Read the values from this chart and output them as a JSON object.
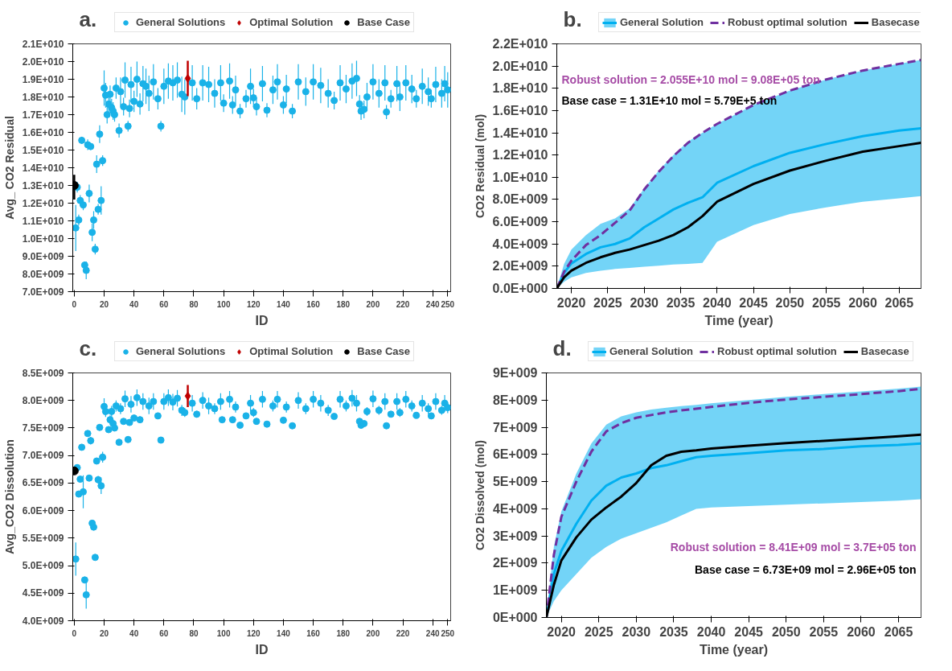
{
  "chart_data": [
    {
      "type": "scatter",
      "title": "a.",
      "xlabel": "ID",
      "ylabel": "Avg_ CO2 Residual",
      "legend": "top",
      "marker": "circle",
      "xlim": [
        -1,
        252
      ],
      "xticks": [
        0,
        20,
        40,
        60,
        80,
        100,
        120,
        140,
        160,
        180,
        200,
        220,
        240,
        250
      ],
      "ylim": [
        7000000000.0,
        21000000000.0
      ],
      "yticks": [
        {
          "value": 7000000000.0,
          "label": "7.0E+009"
        },
        {
          "value": 8000000000.0,
          "label": "8.0E+009"
        },
        {
          "value": 9000000000.0,
          "label": "9.0E+009"
        },
        {
          "value": 10000000000.0,
          "label": "1.0E+010"
        },
        {
          "value": 11000000000.0,
          "label": "1.1E+010"
        },
        {
          "value": 12000000000.0,
          "label": "1.2E+010"
        },
        {
          "value": 13000000000.0,
          "label": "1.3E+010"
        },
        {
          "value": 14000000000.0,
          "label": "1.4E+010"
        },
        {
          "value": 15000000000.0,
          "label": "1.5E+010"
        },
        {
          "value": 16000000000.0,
          "label": "1.6E+010"
        },
        {
          "value": 17000000000.0,
          "label": "1.7E+010"
        },
        {
          "value": 18000000000.0,
          "label": "1.8E+010"
        },
        {
          "value": 19000000000.0,
          "label": "1.9E+010"
        },
        {
          "value": 20000000000.0,
          "label": "2.0E+010"
        },
        {
          "value": 21000000000.0,
          "label": "2.1E+010"
        }
      ],
      "series": [
        {
          "name": "General Solutions",
          "color": "#1ab2e8",
          "x": [
            1,
            2,
            3,
            4,
            5,
            6,
            7,
            8,
            9,
            10,
            11,
            12,
            13,
            14,
            15,
            16,
            17,
            18,
            19,
            20,
            21,
            22,
            23,
            24,
            25,
            26,
            27,
            28,
            30,
            31,
            33,
            34,
            36,
            37,
            38,
            40,
            42,
            44,
            46,
            48,
            50,
            53,
            56,
            58,
            60,
            63,
            66,
            69,
            72,
            74,
            79,
            82,
            86,
            90,
            94,
            98,
            100,
            104,
            106,
            108,
            111,
            115,
            118,
            120,
            122,
            126,
            129,
            133,
            136,
            140,
            142,
            146,
            150,
            155,
            160,
            165,
            170,
            174,
            178,
            182,
            186,
            189,
            191,
            192,
            194,
            196,
            200,
            204,
            208,
            209,
            212,
            216,
            218,
            222,
            226,
            229,
            233,
            237,
            239,
            242,
            246,
            248,
            250
          ],
          "values": [
            10600000000.0,
            12900000000.0,
            11050000000.0,
            12150000000.0,
            15550000000.0,
            11900000000.0,
            8500000000.0,
            8200000000.0,
            15300000000.0,
            12550000000.0,
            15200000000.0,
            10350000000.0,
            11050000000.0,
            9400000000.0,
            14200000000.0,
            11650000000.0,
            15900000000.0,
            12150000000.0,
            14400000000.0,
            18500000000.0,
            18100000000.0,
            17000000000.0,
            17600000000.0,
            18150000000.0,
            17400000000.0,
            17200000000.0,
            17000000000.0,
            18500000000.0,
            16100000000.0,
            18300000000.0,
            17450000000.0,
            18950000000.0,
            16350000000.0,
            17350000000.0,
            18700000000.0,
            17750000000.0,
            19000000000.0,
            17600000000.0,
            18750000000.0,
            18600000000.0,
            18200000000.0,
            18850000000.0,
            17900000000.0,
            16350000000.0,
            18600000000.0,
            18900000000.0,
            18800000000.0,
            18950000000.0,
            18150000000.0,
            18000000000.0,
            18800000000.0,
            17900000000.0,
            18800000000.0,
            18700000000.0,
            18200000000.0,
            18800000000.0,
            17650000000.0,
            18900000000.0,
            17550000000.0,
            18400000000.0,
            17200000000.0,
            17900000000.0,
            18600000000.0,
            17950000000.0,
            17450000000.0,
            18750000000.0,
            17250000000.0,
            18400000000.0,
            18850000000.0,
            17550000000.0,
            18450000000.0,
            17200000000.0,
            18850000000.0,
            18300000000.0,
            18850000000.0,
            18650000000.0,
            18200000000.0,
            17800000000.0,
            18800000000.0,
            18450000000.0,
            18900000000.0,
            19050000000.0,
            17600000000.0,
            17200000000.0,
            17300000000.0,
            18000000000.0,
            18850000000.0,
            18200000000.0,
            18800000000.0,
            17150000000.0,
            17900000000.0,
            18750000000.0,
            18000000000.0,
            18800000000.0,
            18450000000.0,
            17900000000.0,
            18600000000.0,
            18300000000.0,
            17900000000.0,
            18700000000.0,
            18200000000.0,
            18750000000.0,
            18400000000.0
          ],
          "errors": [
            1300000000.0,
            300000000.0,
            300000000.0,
            300000000.0,
            200000000.0,
            300000000.0,
            200000000.0,
            500000000.0,
            300000000.0,
            500000000.0,
            200000000.0,
            500000000.0,
            500000000.0,
            300000000.0,
            500000000.0,
            300000000.0,
            500000000.0,
            800000000.0,
            300000000.0,
            1000000000.0,
            700000000.0,
            500000000.0,
            500000000.0,
            500000000.0,
            500000000.0,
            500000000.0,
            400000000.0,
            600000000.0,
            400000000.0,
            800000000.0,
            500000000.0,
            1000000000.0,
            300000000.0,
            500000000.0,
            1000000000.0,
            600000000.0,
            1000000000.0,
            600000000.0,
            1000000000.0,
            1000000000.0,
            1000000000.0,
            1000000000.0,
            600000000.0,
            300000000.0,
            1000000000.0,
            1000000000.0,
            1000000000.0,
            1000000000.0,
            1000000000.0,
            1000000000.0,
            1000000000.0,
            600000000.0,
            1000000000.0,
            1000000000.0,
            800000000.0,
            1000000000.0,
            500000000.0,
            1000000000.0,
            500000000.0,
            800000000.0,
            400000000.0,
            500000000.0,
            1000000000.0,
            500000000.0,
            500000000.0,
            1000000000.0,
            400000000.0,
            800000000.0,
            1000000000.0,
            500000000.0,
            800000000.0,
            400000000.0,
            1000000000.0,
            800000000.0,
            1000000000.0,
            1000000000.0,
            800000000.0,
            500000000.0,
            1000000000.0,
            800000000.0,
            1000000000.0,
            1000000000.0,
            500000000.0,
            500000000.0,
            500000000.0,
            800000000.0,
            1000000000.0,
            800000000.0,
            1000000000.0,
            400000000.0,
            500000000.0,
            1000000000.0,
            800000000.0,
            1000000000.0,
            800000000.0,
            500000000.0,
            1000000000.0,
            800000000.0,
            500000000.0,
            1000000000.0,
            800000000.0,
            1000000000.0,
            1000000000.0
          ]
        },
        {
          "name": "Optimal Solution",
          "color": "#c00000",
          "marker": "diamond",
          "x": [
            76
          ],
          "values": [
            19050000000.0
          ],
          "errors": [
            1000000000.0
          ]
        },
        {
          "name": "Base Case",
          "color": "#000000",
          "x": [
            0
          ],
          "values": [
            13000000000.0
          ],
          "errors": [
            [
              12200000000.0,
              13600000000.0
            ]
          ]
        }
      ]
    },
    {
      "type": "line",
      "title": "b.",
      "xlabel": "Time (year)",
      "ylabel": "CO2 Residual (mol)",
      "legend": "top",
      "xlim": [
        2018,
        2068
      ],
      "xticks": [
        2020,
        2025,
        2030,
        2035,
        2040,
        2045,
        2050,
        2055,
        2060,
        2065
      ],
      "ylim": [
        0,
        22000000000.0
      ],
      "yticks": [
        {
          "value": 0,
          "label": "0.0E+000"
        },
        {
          "value": 2000000000.0,
          "label": "2.0E+009"
        },
        {
          "value": 4000000000.0,
          "label": "4.0E+009"
        },
        {
          "value": 6000000000.0,
          "label": "6.0E+009"
        },
        {
          "value": 8000000000.0,
          "label": "8.0E+009"
        },
        {
          "value": 10000000000.0,
          "label": "1.0E+010"
        },
        {
          "value": 12000000000.0,
          "label": "1.2E+010"
        },
        {
          "value": 14000000000.0,
          "label": "1.4E+010"
        },
        {
          "value": 16000000000.0,
          "label": "1.6E+010"
        },
        {
          "value": 18000000000.0,
          "label": "1.8E+010"
        },
        {
          "value": 20000000000.0,
          "label": "2.0E+010"
        },
        {
          "value": 22000000000.0,
          "label": "2.2E+010"
        }
      ],
      "x": [
        2018,
        2019,
        2020,
        2022,
        2024,
        2026,
        2028,
        2030,
        2032,
        2034,
        2036,
        2038,
        2040,
        2045,
        2050,
        2055,
        2060,
        2065,
        2068
      ],
      "annotations": [
        "Robust solution = 2.055E+10 mol = 9.08E+05 ton",
        "Base case = 1.31E+10 mol = 5.79E+5 ton"
      ],
      "series": [
        {
          "name": "General Solution",
          "color": "#00b0f0",
          "values": [
            0,
            1400000000.0,
            2250000000.0,
            3100000000.0,
            3700000000.0,
            4000000000.0,
            4500000000.0,
            5500000000.0,
            6300000000.0,
            7100000000.0,
            7700000000.0,
            8200000000.0,
            9500000000.0,
            11000000000.0,
            12200000000.0,
            13000000000.0,
            13700000000.0,
            14200000000.0,
            14400000000.0
          ],
          "lower": [
            0,
            600000000.0,
            1000000000.0,
            1400000000.0,
            1600000000.0,
            1750000000.0,
            1850000000.0,
            1950000000.0,
            2050000000.0,
            2150000000.0,
            2200000000.0,
            2300000000.0,
            4200000000.0,
            5700000000.0,
            6700000000.0,
            7300000000.0,
            7800000000.0,
            8100000000.0,
            8300000000.0
          ],
          "upper": [
            0,
            2200000000.0,
            3500000000.0,
            4800000000.0,
            5800000000.0,
            6300000000.0,
            7200000000.0,
            9000000000.0,
            10600000000.0,
            12000000000.0,
            13200000000.0,
            14000000000.0,
            14800000000.0,
            16500000000.0,
            17800000000.0,
            18800000000.0,
            19600000000.0,
            20200000000.0,
            20550000000.0
          ]
        },
        {
          "name": "Robust optimal solution",
          "color": "#7030a0",
          "line_style": "dashed",
          "values": [
            0,
            1500000000.0,
            2500000000.0,
            3900000000.0,
            4800000000.0,
            5900000000.0,
            7000000000.0,
            8900000000.0,
            10500000000.0,
            11900000000.0,
            13100000000.0,
            14000000000.0,
            14800000000.0,
            16500000000.0,
            17800000000.0,
            18800000000.0,
            19600000000.0,
            20200000000.0,
            20550000000.0
          ]
        },
        {
          "name": "Basecase",
          "color": "#000000",
          "values": [
            0,
            1000000000.0,
            1600000000.0,
            2300000000.0,
            2800000000.0,
            3200000000.0,
            3500000000.0,
            3900000000.0,
            4300000000.0,
            4800000000.0,
            5500000000.0,
            6500000000.0,
            7800000000.0,
            9400000000.0,
            10600000000.0,
            11500000000.0,
            12300000000.0,
            12800000000.0,
            13100000000.0
          ]
        }
      ]
    },
    {
      "type": "scatter",
      "title": "c.",
      "xlabel": "ID",
      "ylabel": "Avg_CO2 Dissolution",
      "legend": "top",
      "marker": "circle",
      "xlim": [
        -1,
        252
      ],
      "xticks": [
        0,
        20,
        40,
        60,
        80,
        100,
        120,
        140,
        160,
        180,
        200,
        220,
        240,
        250
      ],
      "ylim": [
        4000000000.0,
        8500000000.0
      ],
      "yticks": [
        {
          "value": 4000000000.0,
          "label": "4.0E+009"
        },
        {
          "value": 4500000000.0,
          "label": "4.5E+009"
        },
        {
          "value": 5000000000.0,
          "label": "5.0E+009"
        },
        {
          "value": 5500000000.0,
          "label": "5.5E+009"
        },
        {
          "value": 6000000000.0,
          "label": "6.0E+009"
        },
        {
          "value": 6500000000.0,
          "label": "6.5E+009"
        },
        {
          "value": 7000000000.0,
          "label": "7.0E+009"
        },
        {
          "value": 7500000000.0,
          "label": "7.5E+009"
        },
        {
          "value": 8000000000.0,
          "label": "8.0E+009"
        },
        {
          "value": 8500000000.0,
          "label": "8.5E+009"
        }
      ],
      "series": [
        {
          "name": "General Solutions",
          "color": "#1ab2e8",
          "x": [
            1,
            2,
            3,
            4,
            5,
            6,
            7,
            8,
            9,
            10,
            11,
            12,
            13,
            14,
            15,
            16,
            17,
            18,
            19,
            20,
            21,
            23,
            24,
            25,
            26,
            27,
            28,
            30,
            31,
            33,
            34,
            36,
            37,
            38,
            40,
            42,
            44,
            46,
            50,
            53,
            56,
            58,
            60,
            63,
            66,
            69,
            72,
            74,
            79,
            82,
            86,
            90,
            94,
            98,
            99,
            104,
            106,
            108,
            111,
            115,
            118,
            120,
            122,
            126,
            129,
            133,
            136,
            140,
            142,
            146,
            150,
            155,
            160,
            165,
            170,
            174,
            178,
            182,
            186,
            189,
            191,
            192,
            194,
            196,
            200,
            204,
            208,
            209,
            212,
            216,
            218,
            222,
            226,
            229,
            233,
            237,
            239,
            242,
            246,
            248,
            250
          ],
          "values": [
            5120000000.0,
            6780000000.0,
            6300000000.0,
            6570000000.0,
            7150000000.0,
            6340000000.0,
            4740000000.0,
            4470000000.0,
            7400000000.0,
            6590000000.0,
            7270000000.0,
            5770000000.0,
            5700000000.0,
            5150000000.0,
            6900000000.0,
            6560000000.0,
            7510000000.0,
            6450000000.0,
            6970000000.0,
            7890000000.0,
            7800000000.0,
            7470000000.0,
            7650000000.0,
            7800000000.0,
            7580000000.0,
            7500000000.0,
            7900000000.0,
            7240000000.0,
            7850000000.0,
            7620000000.0,
            8030000000.0,
            7290000000.0,
            7600000000.0,
            7930000000.0,
            7680000000.0,
            8050000000.0,
            7650000000.0,
            7980000000.0,
            7900000000.0,
            7980000000.0,
            7720000000.0,
            7280000000.0,
            7980000000.0,
            8050000000.0,
            7970000000.0,
            8040000000.0,
            7820000000.0,
            7780000000.0,
            7950000000.0,
            7750000000.0,
            8000000000.0,
            7900000000.0,
            7850000000.0,
            7980000000.0,
            7650000000.0,
            8020000000.0,
            7650000000.0,
            7880000000.0,
            7550000000.0,
            7720000000.0,
            7950000000.0,
            7780000000.0,
            7620000000.0,
            8020000000.0,
            7570000000.0,
            7900000000.0,
            8020000000.0,
            7640000000.0,
            7880000000.0,
            7540000000.0,
            8000000000.0,
            7850000000.0,
            8020000000.0,
            7950000000.0,
            7820000000.0,
            7710000000.0,
            8020000000.0,
            7900000000.0,
            8040000000.0,
            7950000000.0,
            7620000000.0,
            7550000000.0,
            7580000000.0,
            7800000000.0,
            8030000000.0,
            7820000000.0,
            7980000000.0,
            7540000000.0,
            7750000000.0,
            7980000000.0,
            7780000000.0,
            8020000000.0,
            7900000000.0,
            7730000000.0,
            7950000000.0,
            7850000000.0,
            7720000000.0,
            7980000000.0,
            7820000000.0,
            7950000000.0,
            7870000000.0
          ],
          "errors": [
            300000000.0,
            50000000.0,
            50000000.0,
            50000000.0,
            30000000.0,
            300000000.0,
            50000000.0,
            250000000.0,
            50000000.0,
            30000000.0,
            70000000.0,
            30000000.0,
            30000000.0,
            30000000.0,
            50000000.0,
            70000000.0,
            30000000.0,
            150000000.0,
            100000000.0,
            150000000.0,
            100000000.0,
            50000000.0,
            80000000.0,
            100000000.0,
            50000000.0,
            50000000.0,
            100000000.0,
            40000000.0,
            100000000.0,
            50000000.0,
            150000000.0,
            40000000.0,
            50000000.0,
            150000000.0,
            50000000.0,
            150000000.0,
            60000000.0,
            150000000.0,
            150000000.0,
            150000000.0,
            50000000.0,
            40000000.0,
            150000000.0,
            150000000.0,
            150000000.0,
            150000000.0,
            100000000.0,
            80000000.0,
            150000000.0,
            60000000.0,
            150000000.0,
            150000000.0,
            100000000.0,
            150000000.0,
            50000000.0,
            150000000.0,
            50000000.0,
            100000000.0,
            40000000.0,
            50000000.0,
            150000000.0,
            80000000.0,
            50000000.0,
            150000000.0,
            40000000.0,
            100000000.0,
            150000000.0,
            50000000.0,
            100000000.0,
            40000000.0,
            150000000.0,
            100000000.0,
            150000000.0,
            150000000.0,
            100000000.0,
            50000000.0,
            150000000.0,
            100000000.0,
            150000000.0,
            150000000.0,
            50000000.0,
            50000000.0,
            50000000.0,
            80000000.0,
            150000000.0,
            80000000.0,
            150000000.0,
            40000000.0,
            50000000.0,
            150000000.0,
            80000000.0,
            150000000.0,
            100000000.0,
            50000000.0,
            150000000.0,
            100000000.0,
            50000000.0,
            150000000.0,
            80000000.0,
            150000000.0,
            100000000.0
          ]
        },
        {
          "name": "Optimal Solution",
          "color": "#c00000",
          "marker": "diamond",
          "x": [
            76
          ],
          "values": [
            8080000000.0
          ],
          "errors": [
            200000000.0
          ]
        },
        {
          "name": "Base Case",
          "color": "#000000",
          "x": [
            0
          ],
          "values": [
            6720000000.0
          ]
        }
      ]
    },
    {
      "type": "line",
      "title": "d.",
      "xlabel": "Time (year)",
      "ylabel": "CO2 Dissolved (mol)",
      "legend": "top",
      "xlim": [
        2018,
        2068
      ],
      "xticks": [
        2020,
        2025,
        2030,
        2035,
        2040,
        2045,
        2050,
        2055,
        2060,
        2065
      ],
      "ylim": [
        0,
        9000000000.0
      ],
      "yticks": [
        {
          "value": 0,
          "label": "0E+000"
        },
        {
          "value": 1000000000.0,
          "label": "1E+009"
        },
        {
          "value": 2000000000.0,
          "label": "2E+009"
        },
        {
          "value": 3000000000.0,
          "label": "3E+009"
        },
        {
          "value": 4000000000.0,
          "label": "4E+009"
        },
        {
          "value": 5000000000.0,
          "label": "5E+009"
        },
        {
          "value": 6000000000.0,
          "label": "6E+009"
        },
        {
          "value": 7000000000.0,
          "label": "7E+009"
        },
        {
          "value": 8000000000.0,
          "label": "8E+009"
        },
        {
          "value": 9000000000.0,
          "label": "9E+009"
        }
      ],
      "x": [
        2018,
        2019,
        2020,
        2022,
        2024,
        2026,
        2028,
        2030,
        2032,
        2034,
        2036,
        2038,
        2040,
        2045,
        2050,
        2055,
        2060,
        2065,
        2068
      ],
      "annotations": [
        "Robust solution = 8.41E+09 mol = 3.7E+05 ton",
        "Base case = 6.73E+09 mol = 2.96E+05 ton"
      ],
      "series": [
        {
          "name": "General Solution",
          "color": "#00b0f0",
          "values": [
            0,
            1600000000.0,
            2450000000.0,
            3450000000.0,
            4300000000.0,
            4850000000.0,
            5150000000.0,
            5300000000.0,
            5500000000.0,
            5600000000.0,
            5750000000.0,
            5900000000.0,
            5950000000.0,
            6050000000.0,
            6150000000.0,
            6200000000.0,
            6300000000.0,
            6350000000.0,
            6400000000.0
          ],
          "lower": [
            0,
            600000000.0,
            1000000000.0,
            1600000000.0,
            2200000000.0,
            2600000000.0,
            2900000000.0,
            3100000000.0,
            3300000000.0,
            3500000000.0,
            3750000000.0,
            4000000000.0,
            4050000000.0,
            4100000000.0,
            4150000000.0,
            4200000000.0,
            4250000000.0,
            4300000000.0,
            4350000000.0
          ],
          "upper": [
            0,
            2600000000.0,
            3900000000.0,
            5300000000.0,
            6400000000.0,
            7100000000.0,
            7400000000.0,
            7550000000.0,
            7650000000.0,
            7720000000.0,
            7780000000.0,
            7820000000.0,
            7880000000.0,
            8000000000.0,
            8120000000.0,
            8220000000.0,
            8320000000.0,
            8420000000.0,
            8500000000.0
          ]
        },
        {
          "name": "Robust optimal solution",
          "color": "#7030a0",
          "line_style": "dashed",
          "values": [
            0,
            2300000000.0,
            3700000000.0,
            5000000000.0,
            6100000000.0,
            6850000000.0,
            7150000000.0,
            7350000000.0,
            7450000000.0,
            7550000000.0,
            7620000000.0,
            7680000000.0,
            7750000000.0,
            7900000000.0,
            8020000000.0,
            8120000000.0,
            8220000000.0,
            8330000000.0,
            8410000000.0
          ]
        },
        {
          "name": "Basecase",
          "color": "#000000",
          "values": [
            0,
            1200000000.0,
            2100000000.0,
            2950000000.0,
            3600000000.0,
            4050000000.0,
            4450000000.0,
            4950000000.0,
            5600000000.0,
            5950000000.0,
            6100000000.0,
            6150000000.0,
            6220000000.0,
            6320000000.0,
            6420000000.0,
            6500000000.0,
            6580000000.0,
            6670000000.0,
            6730000000.0
          ]
        }
      ]
    }
  ]
}
